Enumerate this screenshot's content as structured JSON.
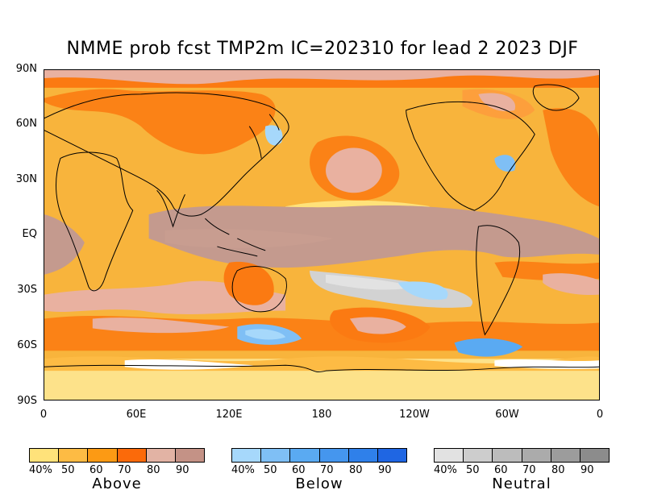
{
  "title": "NMME prob fcst TMP2m IC=202310 for lead 2 2023 DJF",
  "lat_labels": [
    "90N",
    "60N",
    "30N",
    "EQ",
    "30S",
    "60S",
    "90S"
  ],
  "lon_labels": [
    "0",
    "60E",
    "120E",
    "180",
    "120W",
    "60W",
    "0"
  ],
  "legends": [
    {
      "name": "Above",
      "ticks": [
        "40%",
        "50",
        "60",
        "70",
        "80",
        "90"
      ],
      "colors": [
        "#ffe27a",
        "#fdbb44",
        "#fc9a14",
        "#fb6a0a",
        "#e2b3a4",
        "#c49286"
      ]
    },
    {
      "name": "Below",
      "ticks": [
        "40%",
        "50",
        "60",
        "70",
        "80",
        "90"
      ],
      "colors": [
        "#a6d8fb",
        "#7fbff5",
        "#5aaaf2",
        "#4596ee",
        "#2f80ea",
        "#1f66e3"
      ]
    },
    {
      "name": "Neutral",
      "ticks": [
        "40%",
        "50",
        "60",
        "70",
        "80",
        "90"
      ],
      "colors": [
        "#e2e2e2",
        "#cdcdcd",
        "#bcbcbc",
        "#ababab",
        "#9c9c9c",
        "#8c8c8c"
      ]
    }
  ],
  "colors": {
    "background_field": "#f5b23a",
    "land_line": "#000000"
  }
}
